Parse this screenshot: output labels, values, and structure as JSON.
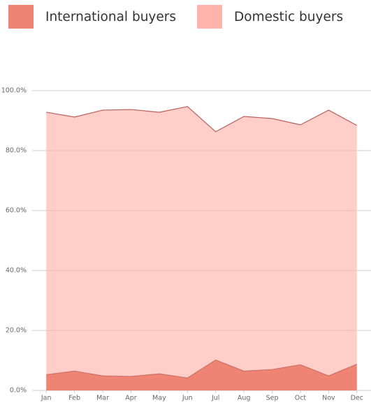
{
  "chart_data": {
    "type": "stacked-area",
    "categories": [
      "Jan",
      "Feb",
      "Mar",
      "Apr",
      "May",
      "Jun",
      "Jul",
      "Aug",
      "Sep",
      "Oct",
      "Nov",
      "Dec"
    ],
    "series": [
      {
        "name": "International buyers",
        "color": "#ef8474",
        "values": [
          5.3,
          6.5,
          4.9,
          4.7,
          5.6,
          4.2,
          10.2,
          6.5,
          7.0,
          8.6,
          4.9,
          8.8
        ]
      },
      {
        "name": "Domestic buyers",
        "color": "#ffb3ab",
        "values": [
          87.5,
          84.7,
          88.6,
          89.0,
          87.2,
          90.5,
          76.1,
          84.9,
          83.7,
          80.0,
          88.6,
          79.6
        ]
      }
    ],
    "ylim": [
      0,
      100
    ],
    "yticks": [
      {
        "value": 0,
        "label": "0.0%"
      },
      {
        "value": 20,
        "label": "20.0%"
      },
      {
        "value": 40,
        "label": "40.0%"
      },
      {
        "value": 60,
        "label": "60.0%"
      },
      {
        "value": 80,
        "label": "80.0%"
      },
      {
        "value": 100,
        "label": "100.0%"
      }
    ],
    "grid": true
  }
}
